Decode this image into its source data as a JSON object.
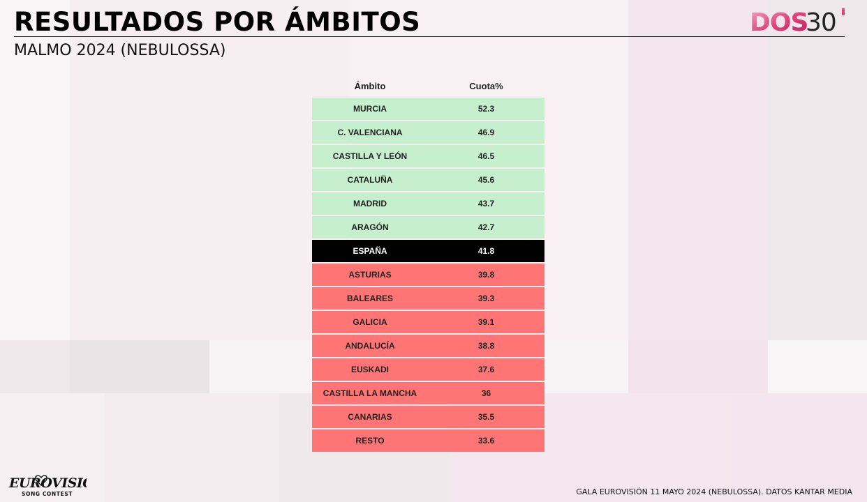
{
  "header": {
    "title": "RESULTADOS POR ÁMBITOS",
    "subtitle": "MALMO 2024 (NEBULOSSA)"
  },
  "brand": {
    "logo_text": "DOS30'",
    "accent_color": "#e0447a"
  },
  "table": {
    "columns": [
      "Ámbito",
      "Cuota%"
    ],
    "rows": [
      {
        "name": "MURCIA",
        "value": "52.3",
        "group": "above"
      },
      {
        "name": "C. VALENCIANA",
        "value": "46.9",
        "group": "above"
      },
      {
        "name": "CASTILLA Y LEÓN",
        "value": "46.5",
        "group": "above"
      },
      {
        "name": "CATALUÑA",
        "value": "45.6",
        "group": "above"
      },
      {
        "name": "MADRID",
        "value": "43.7",
        "group": "above"
      },
      {
        "name": "ARAGÓN",
        "value": "42.7",
        "group": "above"
      },
      {
        "name": "ESPAÑA",
        "value": "41.8",
        "group": "national"
      },
      {
        "name": "ASTURIAS",
        "value": "39.8",
        "group": "below"
      },
      {
        "name": "BALEARES",
        "value": "39.3",
        "group": "below"
      },
      {
        "name": "GALICIA",
        "value": "39.1",
        "group": "below"
      },
      {
        "name": "ANDALUCÍA",
        "value": "38.8",
        "group": "below"
      },
      {
        "name": "EUSKADI",
        "value": "37.6",
        "group": "below"
      },
      {
        "name": "CASTILLA LA MANCHA",
        "value": "36",
        "group": "below"
      },
      {
        "name": "CANARIAS",
        "value": "35.5",
        "group": "below"
      },
      {
        "name": "RESTO",
        "value": "33.6",
        "group": "below"
      }
    ],
    "colors": {
      "above": "#c6efce",
      "national": "#000000",
      "below": "#ff7575"
    }
  },
  "footer": {
    "source": "GALA EUROVISIÓN 11 MAYO 2024 (NEBULOSSA). DATOS KANTAR MEDIA",
    "event_logo_text": "EUROVISION",
    "event_logo_subtext": "SONG CONTEST"
  }
}
